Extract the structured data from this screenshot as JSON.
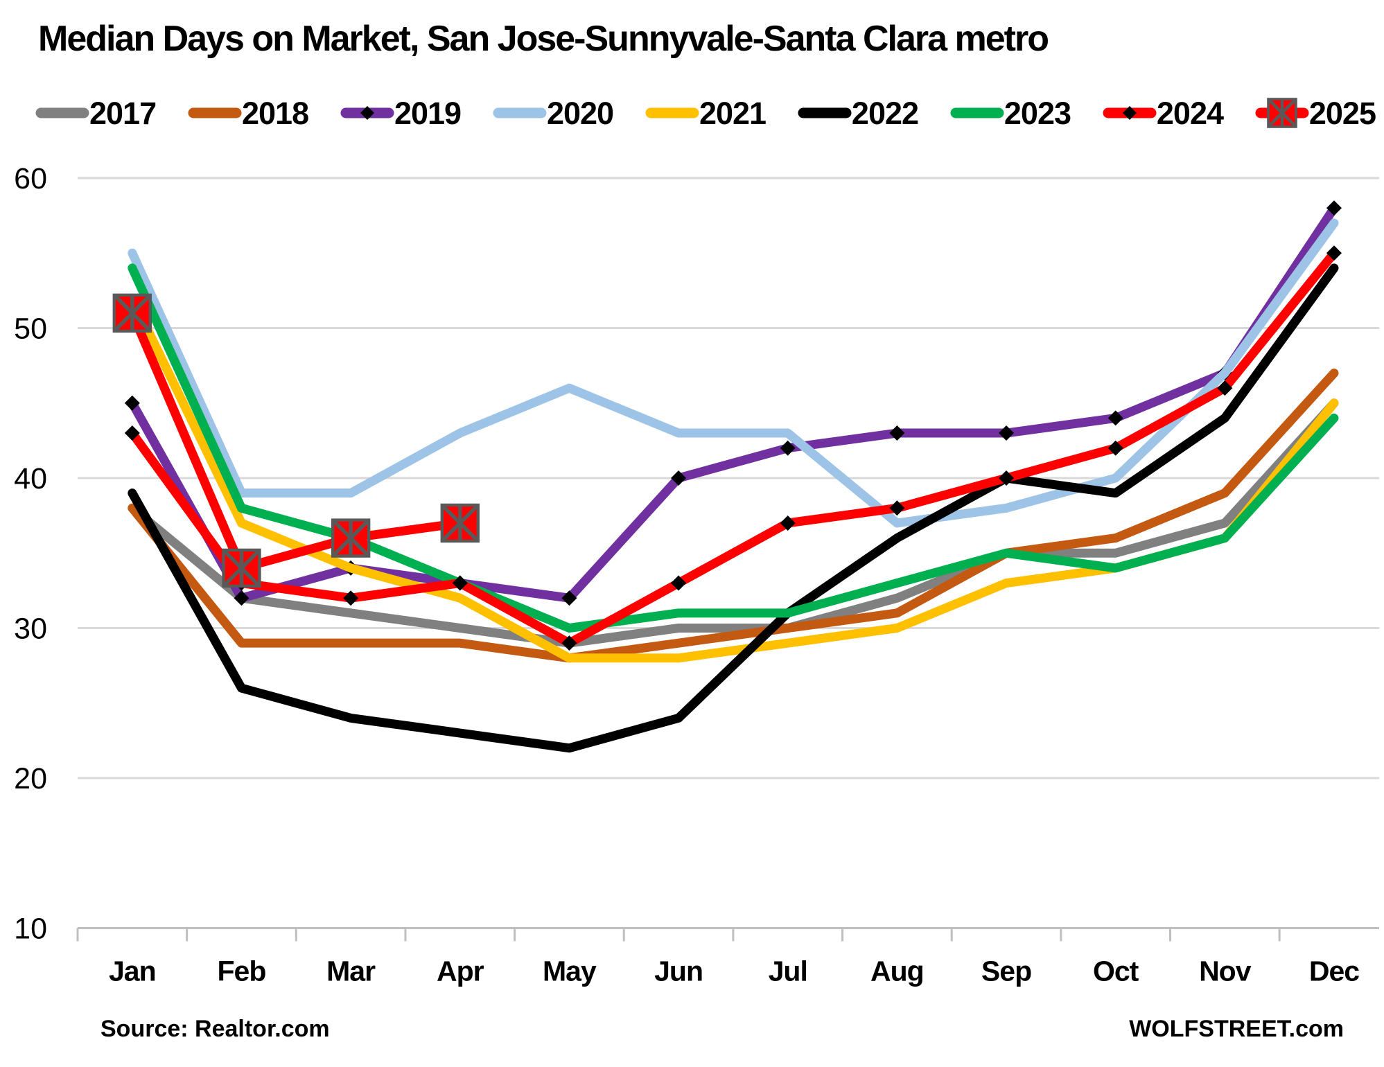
{
  "page": {
    "footer_left": "Source: Realtor.com",
    "footer_right": "WOLFSTREET.com"
  },
  "chart_data": {
    "type": "line",
    "title": "Median Days on Market, San Jose-Sunnyvale-Santa Clara metro",
    "categories": [
      "Jan",
      "Feb",
      "Mar",
      "Apr",
      "May",
      "Jun",
      "Jul",
      "Aug",
      "Sep",
      "Oct",
      "Nov",
      "Dec"
    ],
    "ylabel": "",
    "xlabel": "",
    "ylim": [
      10,
      60
    ],
    "ytick_interval": 10,
    "ytick_labels": [
      "10",
      "20",
      "30",
      "40",
      "50",
      "60"
    ],
    "grid": "horizontal",
    "legend_position": "top",
    "series": [
      {
        "name": "2017",
        "color": "#808080",
        "marker": "none",
        "values": [
          38,
          32,
          31,
          30,
          29,
          30,
          30,
          32,
          35,
          35,
          37,
          45
        ]
      },
      {
        "name": "2018",
        "color": "#C45911",
        "marker": "none",
        "values": [
          38,
          29,
          29,
          29,
          28,
          29,
          30,
          31,
          35,
          36,
          39,
          47
        ]
      },
      {
        "name": "2019",
        "color": "#7030A0",
        "marker": "diamond",
        "marker_color": "#000000",
        "values": [
          45,
          32,
          34,
          33,
          32,
          40,
          42,
          43,
          43,
          44,
          47,
          58
        ]
      },
      {
        "name": "2020",
        "color": "#9DC3E6",
        "marker": "none",
        "values": [
          55,
          39,
          39,
          43,
          46,
          43,
          43,
          37,
          38,
          40,
          47,
          57
        ]
      },
      {
        "name": "2021",
        "color": "#FFC000",
        "marker": "none",
        "values": [
          52,
          37,
          34,
          32,
          28,
          28,
          29,
          30,
          33,
          34,
          36,
          45
        ]
      },
      {
        "name": "2022",
        "color": "#000000",
        "marker": "none",
        "values": [
          39,
          26,
          24,
          23,
          22,
          24,
          31,
          36,
          40,
          39,
          44,
          54
        ]
      },
      {
        "name": "2023",
        "color": "#00B050",
        "marker": "none",
        "values": [
          54,
          38,
          36,
          33,
          30,
          31,
          31,
          33,
          35,
          34,
          36,
          44
        ]
      },
      {
        "name": "2024",
        "color": "#FF0000",
        "marker": "diamond",
        "marker_color": "#000000",
        "values": [
          43,
          33,
          32,
          33,
          29,
          33,
          37,
          38,
          40,
          42,
          46,
          55
        ]
      },
      {
        "name": "2025",
        "color": "#FF0000",
        "marker": "square-x",
        "marker_color": "#595959",
        "values": [
          51,
          34,
          36,
          37
        ]
      }
    ]
  },
  "style_colors": {
    "gridline": "#D9D9D9",
    "axis": "#BFBFBF",
    "text": "#000000",
    "background": "#FFFFFF"
  }
}
